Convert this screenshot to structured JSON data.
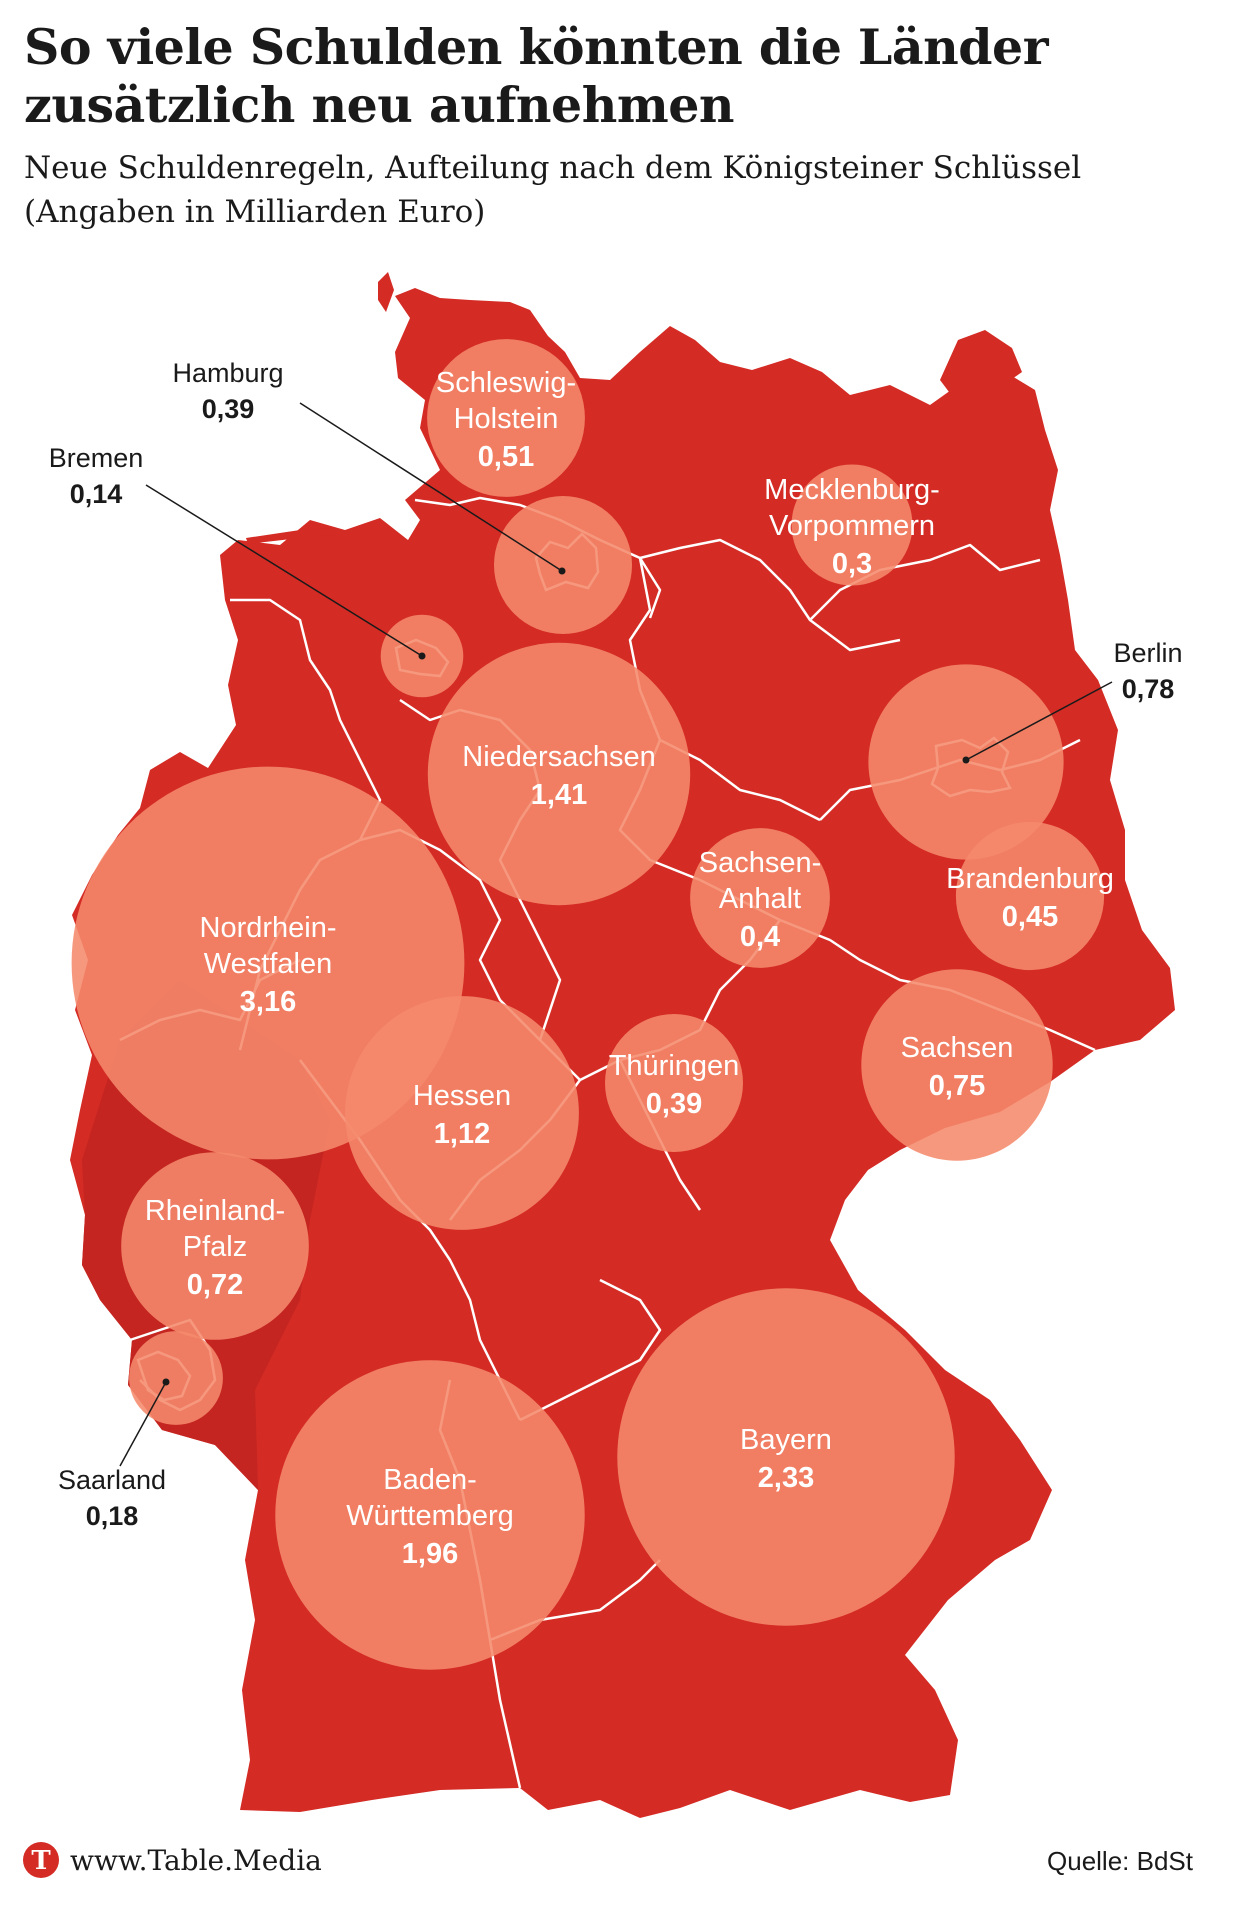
{
  "header": {
    "title": "So viele Schulden könnten die Länder zusätzlich neu aufnehmen",
    "subtitle": "Neue Schuldenregeln, Aufteilung nach dem Königsteiner Schlüssel (Angaben in Milliarden Euro)"
  },
  "colors": {
    "land": "#d42b25",
    "land_dark": "#c42520",
    "bubble": "#f58a6c",
    "border": "#ffffff"
  },
  "states": [
    {
      "name_lines": [
        "Schleswig-",
        "Holstein"
      ],
      "value": "0,51",
      "num": 0.51
    },
    {
      "name_lines": [
        "Hamburg"
      ],
      "value": "0,39",
      "num": 0.39
    },
    {
      "name_lines": [
        "Bremen"
      ],
      "value": "0,14",
      "num": 0.14
    },
    {
      "name_lines": [
        "Mecklenburg-",
        "Vorpommern"
      ],
      "value": "0,3",
      "num": 0.3
    },
    {
      "name_lines": [
        "Berlin"
      ],
      "value": "0,78",
      "num": 0.78
    },
    {
      "name_lines": [
        "Niedersachsen"
      ],
      "value": "1,41",
      "num": 1.41
    },
    {
      "name_lines": [
        "Brandenburg"
      ],
      "value": "0,45",
      "num": 0.45
    },
    {
      "name_lines": [
        "Sachsen-",
        "Anhalt"
      ],
      "value": "0,4",
      "num": 0.4
    },
    {
      "name_lines": [
        "Nordrhein-",
        "Westfalen"
      ],
      "value": "3,16",
      "num": 3.16
    },
    {
      "name_lines": [
        "Sachsen"
      ],
      "value": "0,75",
      "num": 0.75
    },
    {
      "name_lines": [
        "Thüringen"
      ],
      "value": "0,39",
      "num": 0.39
    },
    {
      "name_lines": [
        "Hessen"
      ],
      "value": "1,12",
      "num": 1.12
    },
    {
      "name_lines": [
        "Rheinland-",
        "Pfalz"
      ],
      "value": "0,72",
      "num": 0.72
    },
    {
      "name_lines": [
        "Saarland"
      ],
      "value": "0,18",
      "num": 0.18
    },
    {
      "name_lines": [
        "Baden-",
        "Württemberg"
      ],
      "value": "1,96",
      "num": 1.96
    },
    {
      "name_lines": [
        "Bayern"
      ],
      "value": "2,33",
      "num": 2.33
    }
  ],
  "footer": {
    "brand_initial": "T",
    "brand": "www.Table.Media",
    "source": "Quelle: BdSt"
  }
}
